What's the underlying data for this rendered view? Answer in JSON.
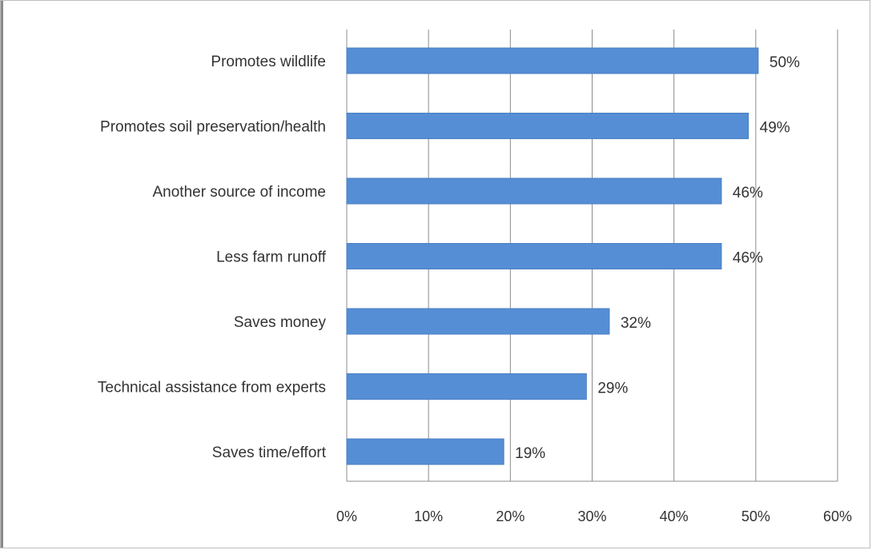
{
  "chart_data": {
    "type": "bar",
    "orientation": "horizontal",
    "categories": [
      "Promotes wildlife",
      "Promotes soil preservation/health",
      "Another source of income",
      "Less farm runoff",
      "Saves money",
      "Technical assistance from experts",
      "Saves time/effort"
    ],
    "values": [
      50.3,
      49.1,
      45.8,
      45.8,
      32.1,
      29.3,
      19.2
    ],
    "data_labels": [
      "50%",
      "49%",
      "46%",
      "46%",
      "32%",
      "29%",
      "19%"
    ],
    "xlim": [
      0,
      60
    ],
    "x_ticks": [
      0,
      10,
      20,
      30,
      40,
      50,
      60
    ],
    "x_tick_labels": [
      "0%",
      "10%",
      "20%",
      "30%",
      "40%",
      "50%",
      "60%"
    ],
    "bar_color": "#558ED5",
    "grid": "vertical",
    "legend": "none"
  }
}
